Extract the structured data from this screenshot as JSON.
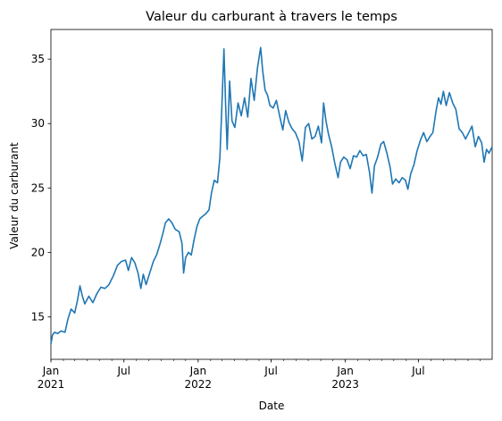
{
  "chart_data": {
    "type": "line",
    "title": "Valeur du carburant à travers le temps",
    "xlabel": "Date",
    "ylabel": "Valeur du carburant",
    "x_range": [
      "2021-01-01",
      "2023-12-31"
    ],
    "ylim": [
      11.7,
      37.3
    ],
    "y_ticks": [
      15,
      20,
      25,
      30,
      35
    ],
    "x_ticks": [
      {
        "date": "2021-01-01",
        "label": "Jan",
        "year": "2021"
      },
      {
        "date": "2021-07-01",
        "label": "Jul",
        "year": ""
      },
      {
        "date": "2022-01-01",
        "label": "Jan",
        "year": "2022"
      },
      {
        "date": "2022-07-01",
        "label": "Jul",
        "year": ""
      },
      {
        "date": "2023-01-01",
        "label": "Jan",
        "year": "2023"
      },
      {
        "date": "2023-07-01",
        "label": "Jul",
        "year": ""
      }
    ],
    "line_color": "#1f77b4",
    "series": [
      {
        "name": "Valeur du carburant",
        "points": [
          [
            "2021-01-01",
            12.9
          ],
          [
            "2021-01-05",
            13.6
          ],
          [
            "2021-01-10",
            13.8
          ],
          [
            "2021-01-18",
            13.7
          ],
          [
            "2021-01-26",
            13.9
          ],
          [
            "2021-02-05",
            13.8
          ],
          [
            "2021-02-12",
            14.8
          ],
          [
            "2021-02-20",
            15.6
          ],
          [
            "2021-03-01",
            15.3
          ],
          [
            "2021-03-08",
            16.3
          ],
          [
            "2021-03-14",
            17.4
          ],
          [
            "2021-03-20",
            16.6
          ],
          [
            "2021-03-26",
            16.0
          ],
          [
            "2021-04-05",
            16.6
          ],
          [
            "2021-04-15",
            16.1
          ],
          [
            "2021-04-25",
            16.8
          ],
          [
            "2021-05-05",
            17.3
          ],
          [
            "2021-05-15",
            17.2
          ],
          [
            "2021-05-25",
            17.5
          ],
          [
            "2021-06-05",
            18.2
          ],
          [
            "2021-06-15",
            19.0
          ],
          [
            "2021-06-25",
            19.3
          ],
          [
            "2021-07-05",
            19.4
          ],
          [
            "2021-07-12",
            18.6
          ],
          [
            "2021-07-20",
            19.6
          ],
          [
            "2021-07-28",
            19.2
          ],
          [
            "2021-08-05",
            18.4
          ],
          [
            "2021-08-12",
            17.2
          ],
          [
            "2021-08-18",
            18.3
          ],
          [
            "2021-08-25",
            17.5
          ],
          [
            "2021-09-05",
            18.6
          ],
          [
            "2021-09-12",
            19.3
          ],
          [
            "2021-09-20",
            19.8
          ],
          [
            "2021-09-28",
            20.6
          ],
          [
            "2021-10-05",
            21.4
          ],
          [
            "2021-10-12",
            22.3
          ],
          [
            "2021-10-20",
            22.6
          ],
          [
            "2021-10-28",
            22.3
          ],
          [
            "2021-11-05",
            21.8
          ],
          [
            "2021-11-15",
            21.6
          ],
          [
            "2021-11-22",
            20.7
          ],
          [
            "2021-11-26",
            18.4
          ],
          [
            "2021-12-01",
            19.6
          ],
          [
            "2021-12-08",
            20.0
          ],
          [
            "2021-12-15",
            19.8
          ],
          [
            "2021-12-22",
            21.0
          ],
          [
            "2021-12-29",
            22.0
          ],
          [
            "2022-01-05",
            22.6
          ],
          [
            "2022-01-12",
            22.8
          ],
          [
            "2022-01-20",
            23.0
          ],
          [
            "2022-01-28",
            23.3
          ],
          [
            "2022-02-03",
            24.6
          ],
          [
            "2022-02-10",
            25.6
          ],
          [
            "2022-02-18",
            25.4
          ],
          [
            "2022-02-24",
            27.4
          ],
          [
            "2022-03-01",
            31.5
          ],
          [
            "2022-03-06",
            35.8
          ],
          [
            "2022-03-10",
            31.6
          ],
          [
            "2022-03-14",
            28.0
          ],
          [
            "2022-03-20",
            33.3
          ],
          [
            "2022-03-26",
            30.2
          ],
          [
            "2022-04-02",
            29.7
          ],
          [
            "2022-04-10",
            31.6
          ],
          [
            "2022-04-18",
            30.6
          ],
          [
            "2022-04-26",
            32.0
          ],
          [
            "2022-05-04",
            30.5
          ],
          [
            "2022-05-12",
            33.5
          ],
          [
            "2022-05-20",
            31.8
          ],
          [
            "2022-05-28",
            34.3
          ],
          [
            "2022-06-05",
            35.9
          ],
          [
            "2022-06-10",
            34.1
          ],
          [
            "2022-06-16",
            32.6
          ],
          [
            "2022-06-22",
            32.2
          ],
          [
            "2022-06-28",
            31.4
          ],
          [
            "2022-07-06",
            31.2
          ],
          [
            "2022-07-14",
            31.8
          ],
          [
            "2022-07-22",
            30.6
          ],
          [
            "2022-07-30",
            29.5
          ],
          [
            "2022-08-06",
            31.0
          ],
          [
            "2022-08-14",
            30.1
          ],
          [
            "2022-08-22",
            29.6
          ],
          [
            "2022-08-30",
            29.3
          ],
          [
            "2022-09-08",
            28.6
          ],
          [
            "2022-09-16",
            27.1
          ],
          [
            "2022-09-24",
            29.7
          ],
          [
            "2022-10-02",
            30.0
          ],
          [
            "2022-10-10",
            28.8
          ],
          [
            "2022-10-18",
            29.0
          ],
          [
            "2022-10-26",
            29.8
          ],
          [
            "2022-11-03",
            28.5
          ],
          [
            "2022-11-08",
            31.6
          ],
          [
            "2022-11-14",
            30.2
          ],
          [
            "2022-11-20",
            29.2
          ],
          [
            "2022-11-28",
            28.2
          ],
          [
            "2022-12-06",
            26.9
          ],
          [
            "2022-12-14",
            25.8
          ],
          [
            "2022-12-20",
            27.0
          ],
          [
            "2022-12-28",
            27.4
          ],
          [
            "2023-01-05",
            27.2
          ],
          [
            "2023-01-13",
            26.5
          ],
          [
            "2023-01-21",
            27.5
          ],
          [
            "2023-01-29",
            27.4
          ],
          [
            "2023-02-06",
            27.9
          ],
          [
            "2023-02-14",
            27.5
          ],
          [
            "2023-02-22",
            27.6
          ],
          [
            "2023-03-02",
            26.2
          ],
          [
            "2023-03-08",
            24.6
          ],
          [
            "2023-03-14",
            26.7
          ],
          [
            "2023-03-22",
            27.4
          ],
          [
            "2023-03-30",
            28.4
          ],
          [
            "2023-04-06",
            28.6
          ],
          [
            "2023-04-14",
            27.7
          ],
          [
            "2023-04-22",
            26.6
          ],
          [
            "2023-04-28",
            25.3
          ],
          [
            "2023-05-06",
            25.7
          ],
          [
            "2023-05-14",
            25.4
          ],
          [
            "2023-05-22",
            25.8
          ],
          [
            "2023-05-30",
            25.6
          ],
          [
            "2023-06-05",
            24.9
          ],
          [
            "2023-06-12",
            26.1
          ],
          [
            "2023-06-20",
            26.8
          ],
          [
            "2023-06-28",
            27.9
          ],
          [
            "2023-07-06",
            28.7
          ],
          [
            "2023-07-14",
            29.3
          ],
          [
            "2023-07-22",
            28.6
          ],
          [
            "2023-07-30",
            29.0
          ],
          [
            "2023-08-06",
            29.3
          ],
          [
            "2023-08-14",
            31.0
          ],
          [
            "2023-08-20",
            32.0
          ],
          [
            "2023-08-26",
            31.5
          ],
          [
            "2023-09-01",
            32.5
          ],
          [
            "2023-09-08",
            31.4
          ],
          [
            "2023-09-16",
            32.4
          ],
          [
            "2023-09-24",
            31.6
          ],
          [
            "2023-10-02",
            31.1
          ],
          [
            "2023-10-10",
            29.6
          ],
          [
            "2023-10-18",
            29.3
          ],
          [
            "2023-10-26",
            28.8
          ],
          [
            "2023-11-03",
            29.3
          ],
          [
            "2023-11-11",
            29.8
          ],
          [
            "2023-11-19",
            28.2
          ],
          [
            "2023-11-27",
            29.0
          ],
          [
            "2023-12-05",
            28.5
          ],
          [
            "2023-12-11",
            27.0
          ],
          [
            "2023-12-17",
            28.0
          ],
          [
            "2023-12-23",
            27.7
          ],
          [
            "2023-12-31",
            28.2
          ]
        ]
      }
    ]
  }
}
